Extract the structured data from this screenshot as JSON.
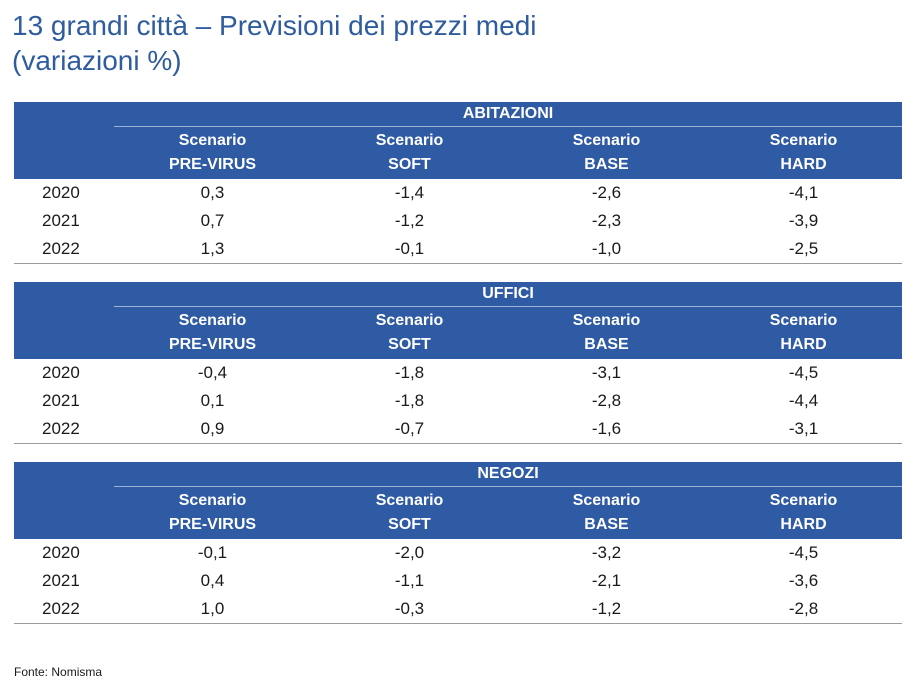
{
  "title": {
    "line1": "13 grandi città – Previsioni dei prezzi medi",
    "line2": "(variazioni %)"
  },
  "sections": [
    {
      "name": "ABITAZIONI",
      "headers": [
        [
          "Scenario",
          "PRE-VIRUS"
        ],
        [
          "Scenario",
          "SOFT"
        ],
        [
          "Scenario",
          "BASE"
        ],
        [
          "Scenario",
          "HARD"
        ]
      ],
      "rows": [
        {
          "year": "2020",
          "values": [
            "0,3",
            "-1,4",
            "-2,6",
            "-4,1"
          ]
        },
        {
          "year": "2021",
          "values": [
            "0,7",
            "-1,2",
            "-2,3",
            "-3,9"
          ]
        },
        {
          "year": "2022",
          "values": [
            "1,3",
            "-0,1",
            "-1,0",
            "-2,5"
          ]
        }
      ]
    },
    {
      "name": "UFFICI",
      "headers": [
        [
          "Scenario",
          "PRE-VIRUS"
        ],
        [
          "Scenario",
          "SOFT"
        ],
        [
          "Scenario",
          "BASE"
        ],
        [
          "Scenario",
          "HARD"
        ]
      ],
      "rows": [
        {
          "year": "2020",
          "values": [
            "-0,4",
            "-1,8",
            "-3,1",
            "-4,5"
          ]
        },
        {
          "year": "2021",
          "values": [
            "0,1",
            "-1,8",
            "-2,8",
            "-4,4"
          ]
        },
        {
          "year": "2022",
          "values": [
            "0,9",
            "-0,7",
            "-1,6",
            "-3,1"
          ]
        }
      ]
    },
    {
      "name": "NEGOZI",
      "headers": [
        [
          "Scenario",
          "PRE-VIRUS"
        ],
        [
          "Scenario",
          "SOFT"
        ],
        [
          "Scenario",
          "BASE"
        ],
        [
          "Scenario",
          "HARD"
        ]
      ],
      "rows": [
        {
          "year": "2020",
          "values": [
            "-0,1",
            "-2,0",
            "-3,2",
            "-4,5"
          ]
        },
        {
          "year": "2021",
          "values": [
            "0,4",
            "-1,1",
            "-2,1",
            "-3,6"
          ]
        },
        {
          "year": "2022",
          "values": [
            "1,0",
            "-0,3",
            "-1,2",
            "-2,8"
          ]
        }
      ]
    }
  ],
  "source": "Fonte: Nomisma"
}
